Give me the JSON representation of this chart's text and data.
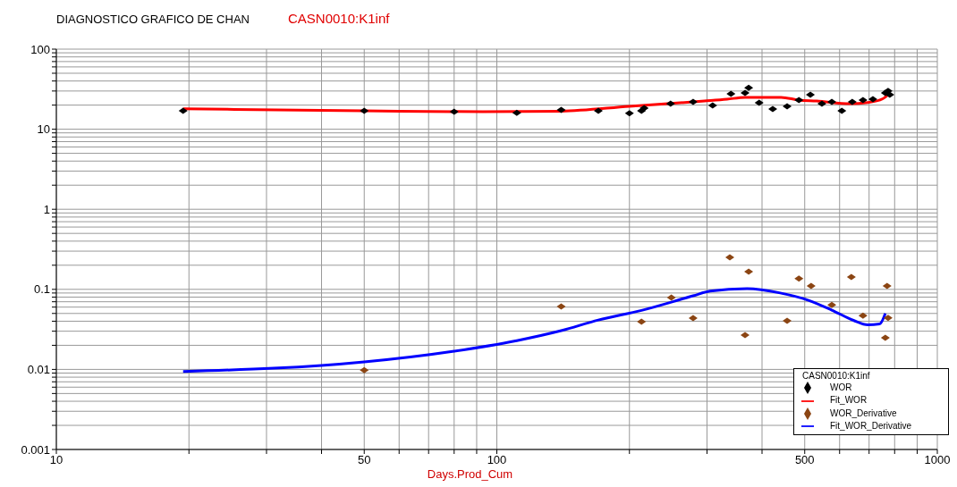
{
  "chart_data": {
    "type": "scatter",
    "title": "DIAGNOSTICO GRAFICO DE CHAN",
    "subtitle": "CASN0010:K1inf",
    "xlabel": "Days.Prod_Cum",
    "legend_title": "CASN0010:K1inf",
    "log": "xy",
    "grid": true,
    "legend": "bottom right",
    "line_style": "solid",
    "xlim": [
      10,
      1000
    ],
    "xticks": [
      10,
      {
        "value": 20,
        "label": null
      },
      {
        "value": 30,
        "label": null
      },
      {
        "value": 40,
        "label": null
      },
      50,
      {
        "value": 60,
        "label": null
      },
      {
        "value": 70,
        "label": null
      },
      {
        "value": 80,
        "label": null
      },
      {
        "value": 90,
        "label": null
      },
      100,
      {
        "value": 200,
        "label": null
      },
      {
        "value": 300,
        "label": null
      },
      {
        "value": 400,
        "label": null
      },
      500,
      {
        "value": 600,
        "label": null
      },
      {
        "value": 700,
        "label": null
      },
      {
        "value": 800,
        "label": null
      },
      {
        "value": 900,
        "label": null
      },
      1000
    ],
    "ylim": [
      0.001,
      100
    ],
    "yticks": [
      0.001,
      {
        "value": 0.002,
        "label": null
      },
      {
        "value": 0.003,
        "label": null
      },
      {
        "value": 0.004,
        "label": null
      },
      {
        "value": 0.005,
        "label": null
      },
      {
        "value": 0.006,
        "label": null
      },
      {
        "value": 0.007,
        "label": null
      },
      {
        "value": 0.008,
        "label": null
      },
      {
        "value": 0.009,
        "label": null
      },
      0.01,
      {
        "value": 0.02,
        "label": null
      },
      {
        "value": 0.03,
        "label": null
      },
      {
        "value": 0.04,
        "label": null
      },
      {
        "value": 0.05,
        "label": null
      },
      {
        "value": 0.06,
        "label": null
      },
      {
        "value": 0.07,
        "label": null
      },
      {
        "value": 0.08,
        "label": null
      },
      {
        "value": 0.09,
        "label": null
      },
      0.1,
      {
        "value": 0.2,
        "label": null
      },
      {
        "value": 0.3,
        "label": null
      },
      {
        "value": 0.4,
        "label": null
      },
      {
        "value": 0.5,
        "label": null
      },
      {
        "value": 0.6,
        "label": null
      },
      {
        "value": 0.7,
        "label": null
      },
      {
        "value": 0.8,
        "label": null
      },
      {
        "value": 0.9,
        "label": null
      },
      1,
      {
        "value": 2,
        "label": null
      },
      {
        "value": 3,
        "label": null
      },
      {
        "value": 4,
        "label": null
      },
      {
        "value": 5,
        "label": null
      },
      {
        "value": 6,
        "label": null
      },
      {
        "value": 7,
        "label": null
      },
      {
        "value": 8,
        "label": null
      },
      {
        "value": 9,
        "label": null
      },
      10,
      {
        "value": 20,
        "label": null
      },
      {
        "value": 30,
        "label": null
      },
      {
        "value": 40,
        "label": null
      },
      {
        "value": 50,
        "label": null
      },
      {
        "value": 60,
        "label": null
      },
      {
        "value": 70,
        "label": null
      },
      {
        "value": 80,
        "label": null
      },
      {
        "value": 90,
        "label": null
      },
      100
    ],
    "series": [
      {
        "name": "WOR",
        "marker": "diamond",
        "color": "#000000",
        "x": [
          19.4,
          50,
          80,
          111,
          140,
          170,
          200,
          213,
          216,
          248,
          279,
          309,
          340,
          366,
          373,
          394,
          423,
          456,
          485,
          515,
          547,
          576,
          607,
          641,
          678,
          714,
          762,
          773,
          780
        ],
        "values": [
          17,
          17,
          16.5,
          16,
          17.4,
          17,
          15.8,
          17,
          18.3,
          20.8,
          22,
          19.8,
          27.7,
          28.4,
          33,
          21.4,
          17.9,
          19.3,
          23.1,
          27,
          20.8,
          22,
          17,
          22,
          23.1,
          23.7,
          28.4,
          30,
          27
        ]
      },
      {
        "name": "Fit_WOR",
        "type": "line",
        "marker": "none",
        "color": "#ff0000",
        "x": [
          19.4,
          50,
          93,
          140,
          200,
          296,
          333,
          366,
          442,
          485,
          532,
          633,
          695,
          752,
          780
        ],
        "values": [
          18,
          17,
          16.5,
          16.8,
          19.3,
          22.5,
          23.7,
          25,
          25,
          23.1,
          22.5,
          20.8,
          21.5,
          24,
          28.4
        ]
      },
      {
        "name": "WOR_Derivative",
        "marker": "diamond",
        "color": "#8b4513",
        "x": [
          50,
          140,
          213,
          249,
          279,
          338,
          366,
          373,
          456,
          485,
          517,
          576,
          638,
          678,
          762,
          769,
          773
        ],
        "values": [
          0.0098,
          0.061,
          0.0395,
          0.079,
          0.0437,
          0.251,
          0.0269,
          0.166,
          0.0405,
          0.136,
          0.11,
          0.064,
          0.143,
          0.047,
          0.0248,
          0.11,
          0.044
        ]
      },
      {
        "name": "Fit_WOR_Derivative",
        "type": "line",
        "marker": "none",
        "color": "#0000ff",
        "x": [
          19.4,
          50,
          80,
          111,
          140,
          170,
          213,
          279,
          305,
          370,
          440,
          510,
          576,
          645,
          695,
          740,
          762
        ],
        "values": [
          0.0094,
          0.0124,
          0.0169,
          0.0229,
          0.0305,
          0.0414,
          0.0546,
          0.083,
          0.095,
          0.102,
          0.09,
          0.073,
          0.055,
          0.041,
          0.036,
          0.037,
          0.05
        ]
      }
    ]
  }
}
